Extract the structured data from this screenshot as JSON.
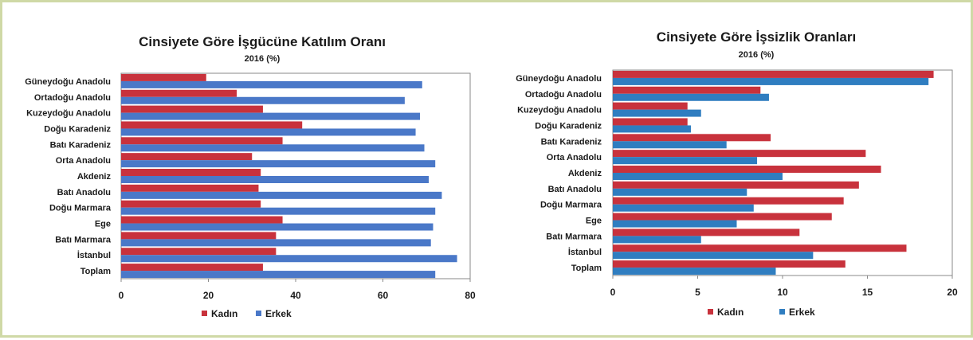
{
  "colors": {
    "kadin": "#c8323c",
    "erkek": "#4a78c8",
    "erkek_right": "#2f7dc0"
  },
  "chart_data": [
    {
      "type": "bar",
      "orientation": "horizontal",
      "title": "Cinsiyete Göre İşgücüne Katılım Oranı",
      "subtitle": "2016 (%)",
      "categories": [
        "Güneydoğu Anadolu",
        "Ortadoğu Anadolu",
        "Kuzeydoğu Anadolu",
        "Doğu Karadeniz",
        "Batı Karadeniz",
        "Orta Anadolu",
        "Akdeniz",
        "Batı Anadolu",
        "Doğu Marmara",
        "Ege",
        "Batı Marmara",
        "İstanbul",
        "Toplam"
      ],
      "series": [
        {
          "name": "Kadın",
          "values": [
            19.5,
            26.5,
            32.5,
            41.5,
            37,
            30,
            32,
            31.5,
            32,
            37,
            35.5,
            35.5,
            32.5
          ]
        },
        {
          "name": "Erkek",
          "values": [
            69,
            65,
            68.5,
            67.5,
            69.5,
            72,
            70.5,
            73.5,
            72,
            71.5,
            71,
            77,
            72
          ]
        }
      ],
      "xlim": [
        0,
        80
      ],
      "xticks": [
        "0",
        "20",
        "40",
        "60",
        "80"
      ],
      "grid": false,
      "legend": "bottom"
    },
    {
      "type": "bar",
      "orientation": "horizontal",
      "title": "Cinsiyete Göre İşsizlik Oranları",
      "subtitle": "2016 (%)",
      "categories": [
        "Güneydoğu Anadolu",
        "Ortadoğu Anadolu",
        "Kuzeydoğu Anadolu",
        "Doğu Karadeniz",
        "Batı Karadeniz",
        "Orta Anadolu",
        "Akdeniz",
        "Batı Anadolu",
        "Doğu Marmara",
        "Ege",
        "Batı Marmara",
        "İstanbul",
        "Toplam"
      ],
      "series": [
        {
          "name": "Kadın",
          "values": [
            18.9,
            8.7,
            4.4,
            4.4,
            9.3,
            14.9,
            15.8,
            14.5,
            13.6,
            12.9,
            11,
            17.3,
            13.7
          ]
        },
        {
          "name": "Erkek",
          "values": [
            18.6,
            9.2,
            5.2,
            4.6,
            6.7,
            8.5,
            10,
            7.9,
            8.3,
            7.3,
            5.2,
            11.8,
            9.6
          ]
        }
      ],
      "xlim": [
        0,
        20
      ],
      "xticks": [
        "0",
        "5",
        "10",
        "15",
        "20"
      ],
      "grid": false,
      "legend": "bottom"
    }
  ]
}
